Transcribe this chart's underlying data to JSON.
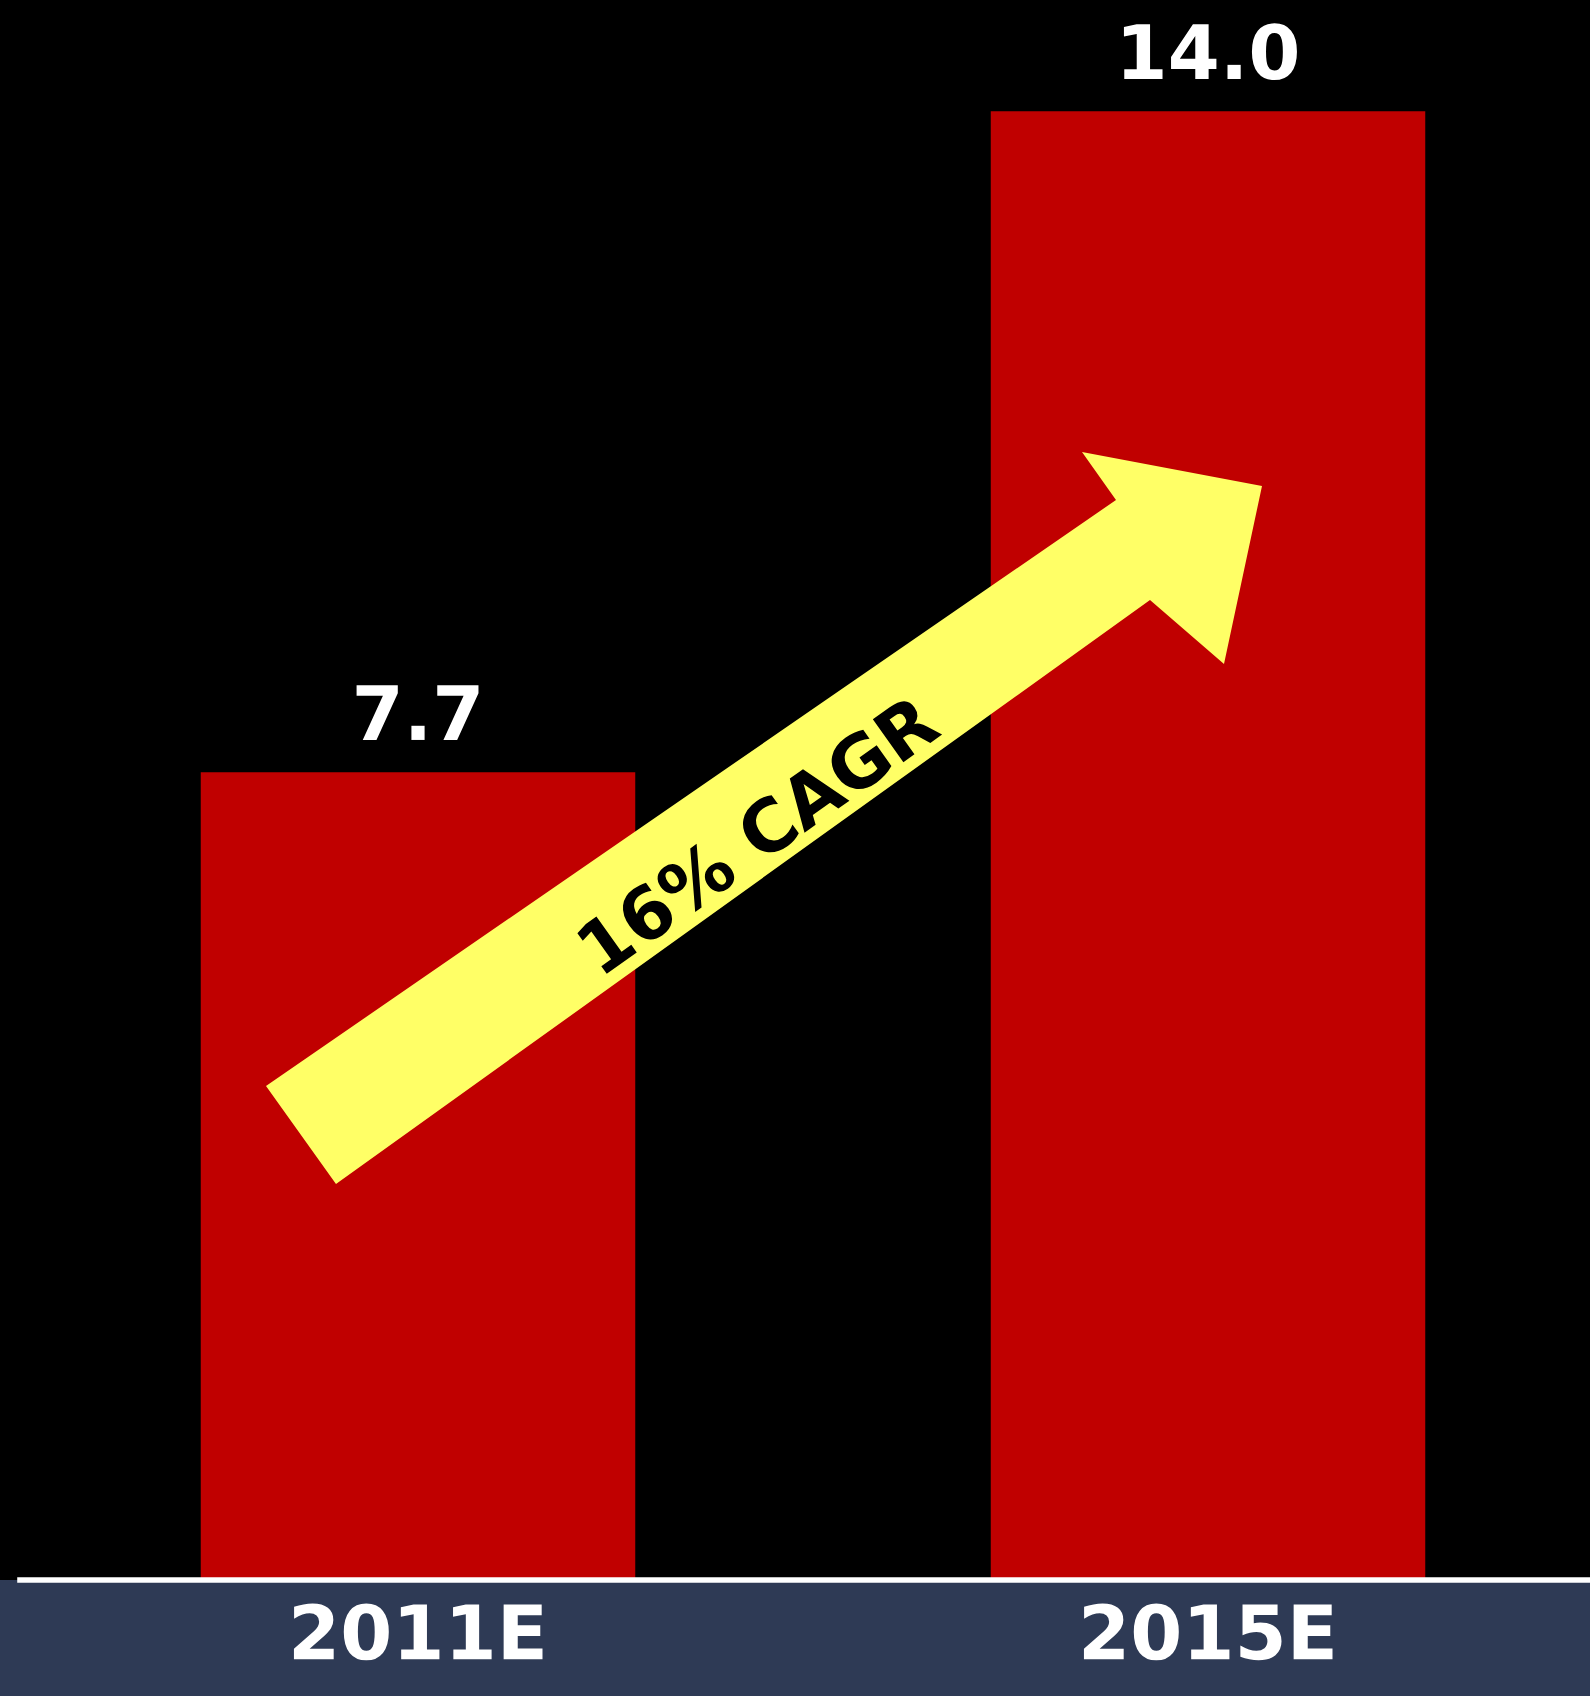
{
  "chart_data": {
    "type": "bar",
    "categories": [
      "2011E",
      "2015E"
    ],
    "values": [
      7.7,
      14.0
    ],
    "color": "#c00000",
    "value_labels": [
      "7.7",
      "14.0"
    ],
    "annotations": [
      "16% CAGR"
    ]
  }
}
